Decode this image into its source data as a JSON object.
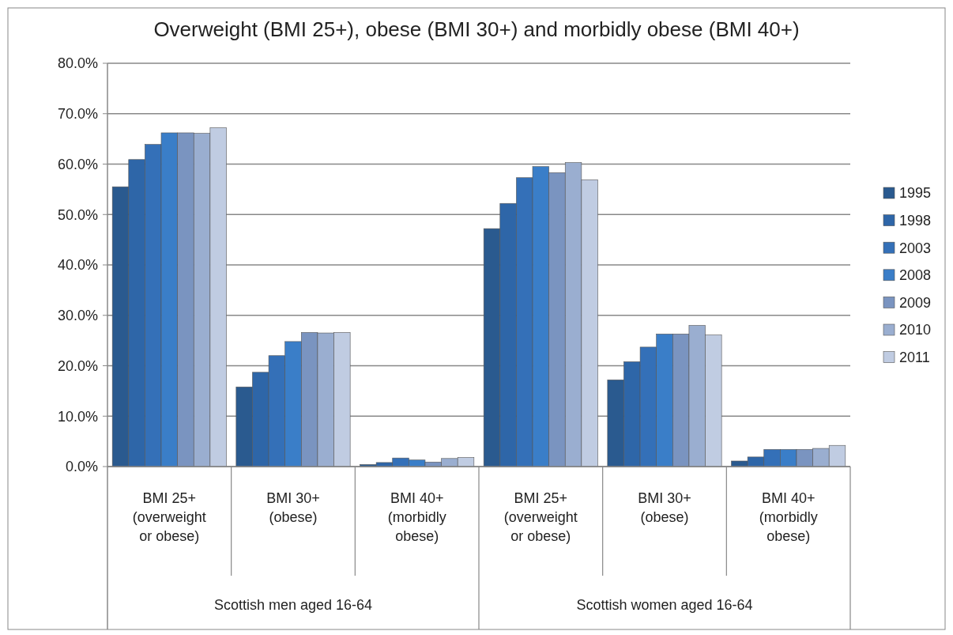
{
  "chart_data": {
    "type": "bar",
    "title": "Overweight (BMI 25+), obese (BMI 30+) and morbidly obese (BMI 40+)",
    "categories": [
      "BMI 25+ (overweight or obese)",
      "BMI 30+ (obese)",
      "BMI 40+ (morbidly obese)",
      "BMI 25+ (overweight or obese)",
      "BMI 30+ (obese)",
      "BMI 40+ (morbidly obese)"
    ],
    "annotations": [
      "Scottish men aged 16-64",
      "Scottish women aged 16-64"
    ],
    "series": [
      {
        "name": "1995",
        "color": "#2a5a8f",
        "values": [
          55.5,
          15.8,
          0.4,
          47.2,
          17.2,
          1.1
        ]
      },
      {
        "name": "1998",
        "color": "#2e66a8",
        "values": [
          60.9,
          18.7,
          0.8,
          52.2,
          20.8,
          1.9
        ]
      },
      {
        "name": "2003",
        "color": "#3470b8",
        "values": [
          63.9,
          22.0,
          1.7,
          57.3,
          23.7,
          3.4
        ]
      },
      {
        "name": "2008",
        "color": "#3a7ec8",
        "values": [
          66.2,
          24.8,
          1.3,
          59.5,
          26.3,
          3.4
        ]
      },
      {
        "name": "2009",
        "color": "#7a94c0",
        "values": [
          66.2,
          26.6,
          0.9,
          58.3,
          26.3,
          3.4
        ]
      },
      {
        "name": "2010",
        "color": "#9aaed0",
        "values": [
          66.1,
          26.5,
          1.6,
          60.3,
          28.0,
          3.6
        ]
      },
      {
        "name": "2011",
        "color": "#c0cce2",
        "values": [
          67.2,
          26.6,
          1.8,
          56.9,
          26.1,
          4.2
        ]
      }
    ],
    "ylim": [
      0,
      80
    ],
    "yticks": [
      {
        "value": 0,
        "label": "0.0%"
      },
      {
        "value": 10,
        "label": "10.0%"
      },
      {
        "value": 20,
        "label": "20.0%"
      },
      {
        "value": 30,
        "label": "30.0%"
      },
      {
        "value": 40,
        "label": "40.0%"
      },
      {
        "value": 50,
        "label": "50.0%"
      },
      {
        "value": 60,
        "label": "60.0%"
      },
      {
        "value": 70,
        "label": "70.0%"
      },
      {
        "value": 80,
        "label": "80.0%"
      }
    ],
    "grid": "y",
    "legend": "right"
  }
}
